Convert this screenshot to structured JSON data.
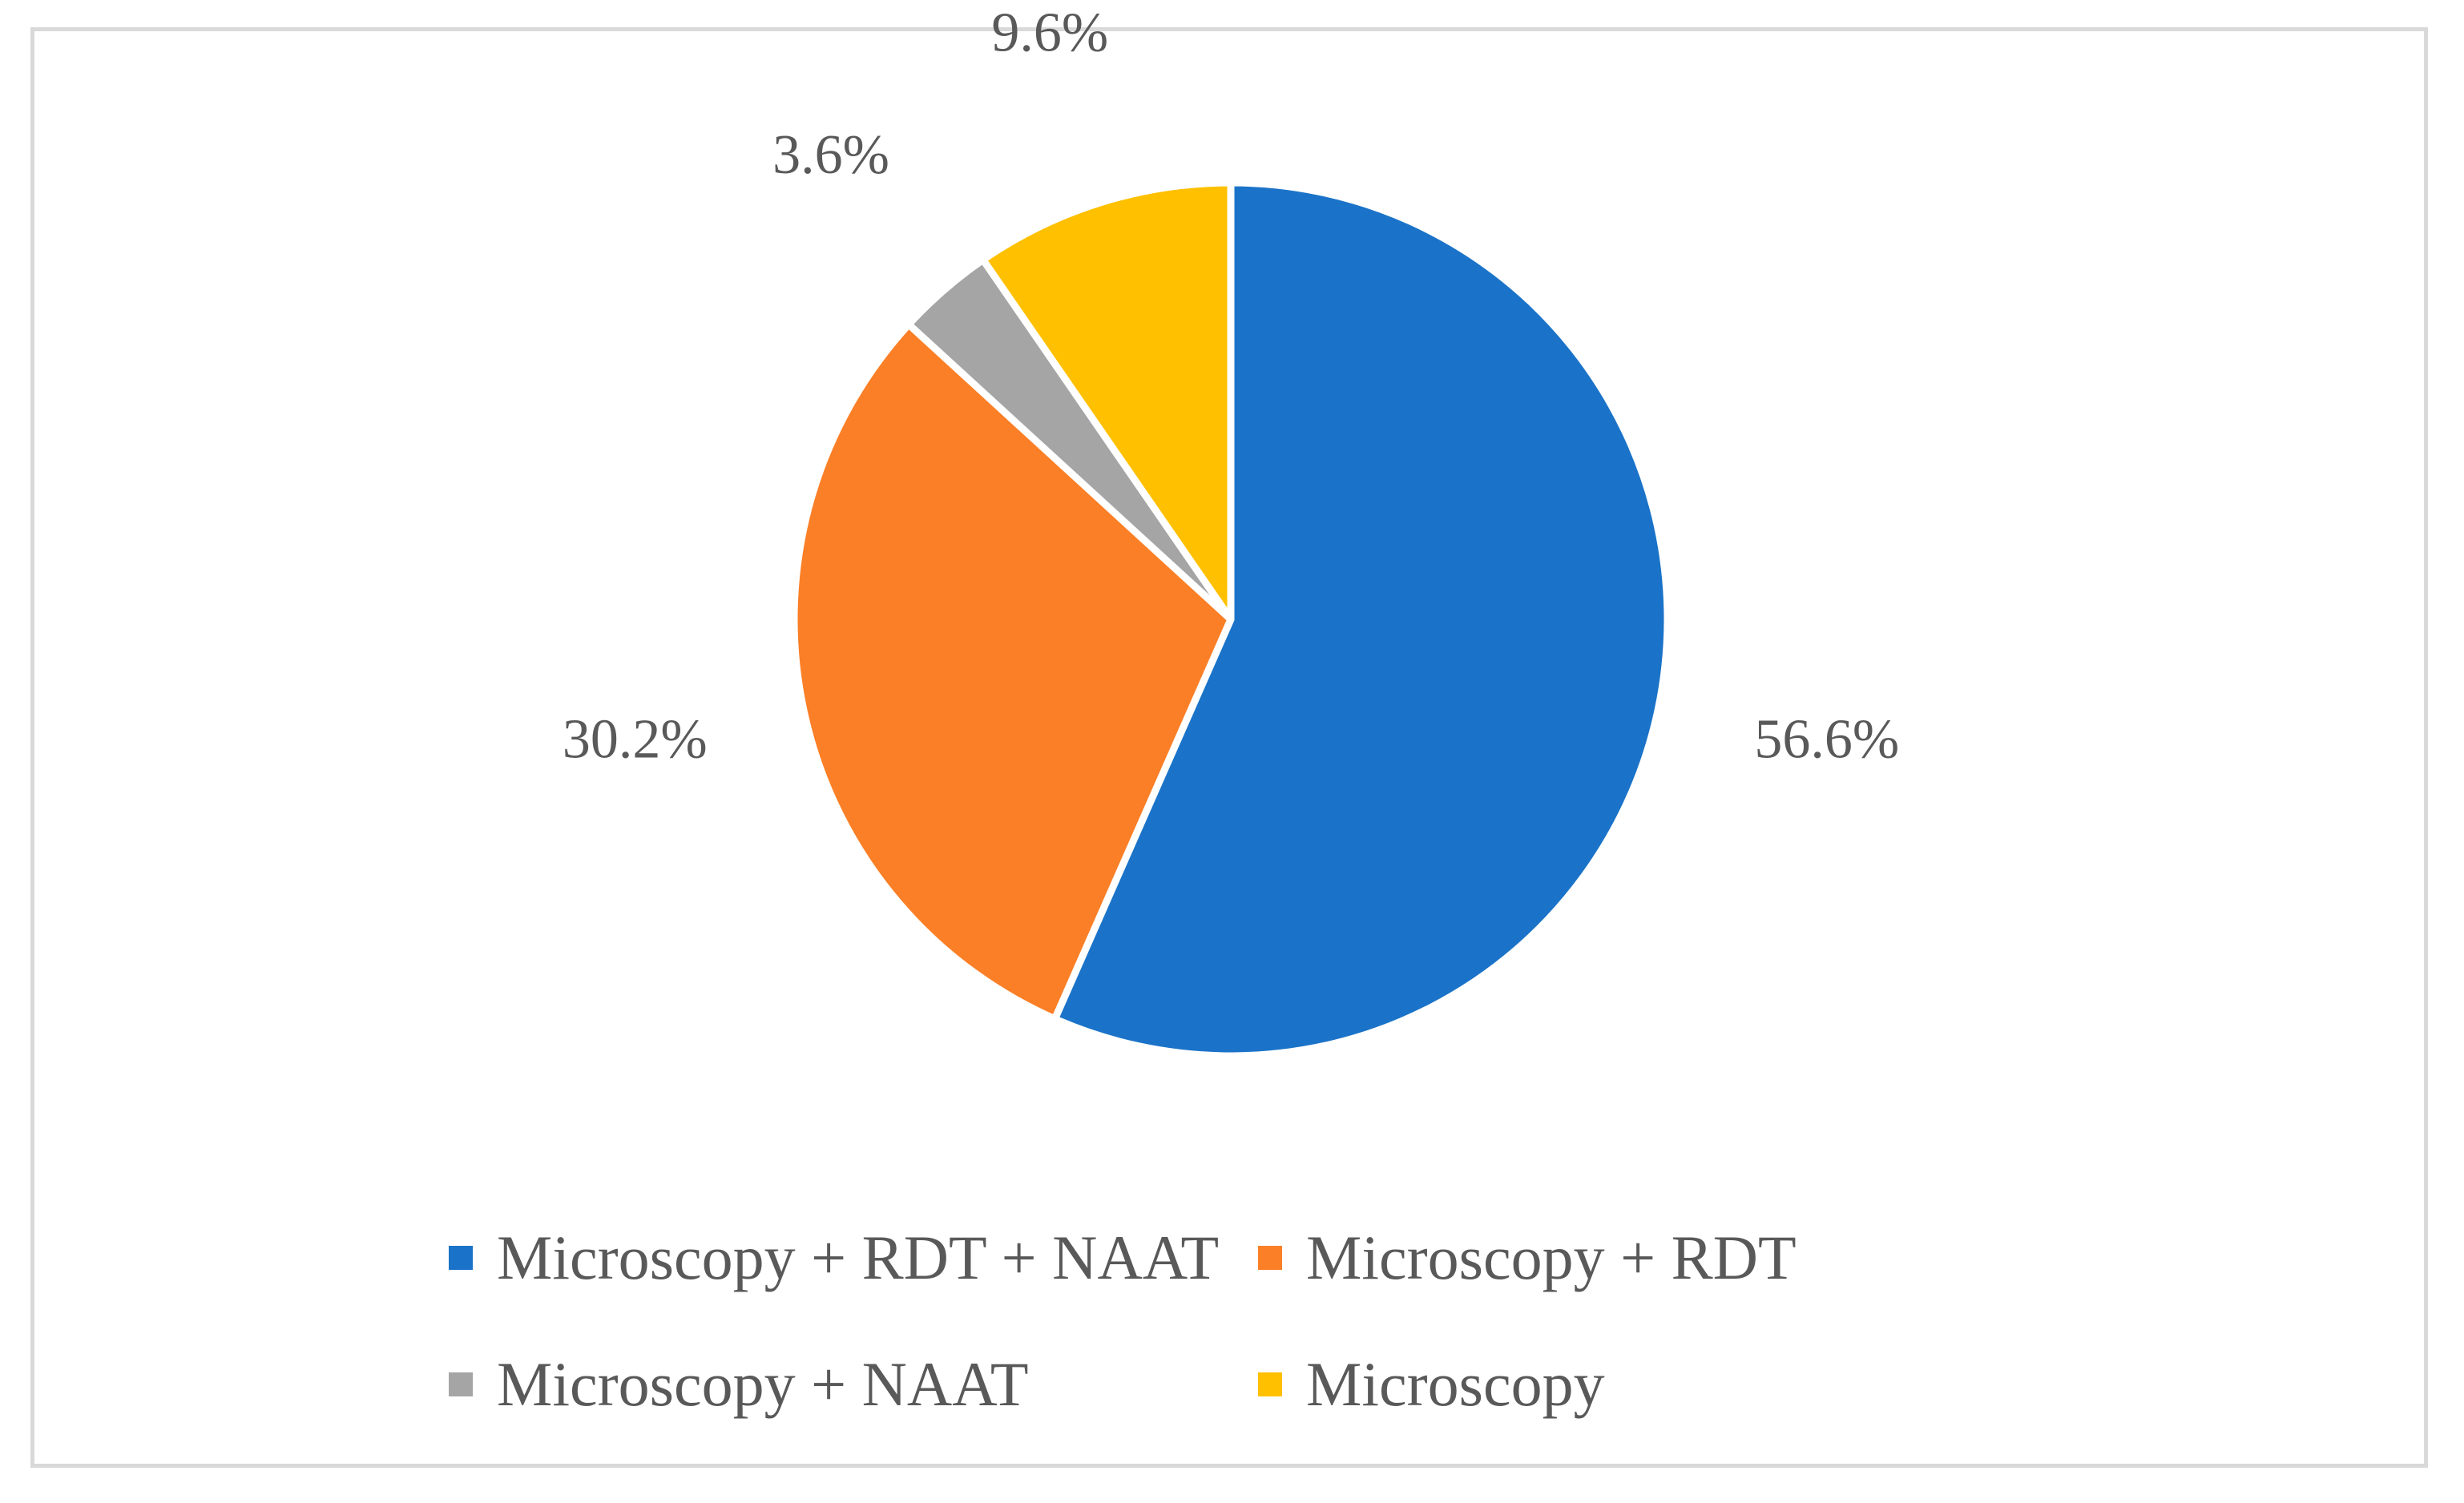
{
  "chart_data": {
    "type": "pie",
    "title": "",
    "slices": [
      {
        "name": "Microscopy + RDT + NAAT",
        "value": 56.6,
        "label": "56.6%",
        "color": "#1a73c8"
      },
      {
        "name": "Microscopy + RDT",
        "value": 30.2,
        "label": "30.2%",
        "color": "#fb7f26"
      },
      {
        "name": "Microscopy + NAAT",
        "value": 3.6,
        "label": "3.6%",
        "color": "#a5a5a5"
      },
      {
        "name": "Microscopy",
        "value": 9.6,
        "label": "9.6%",
        "color": "#ffc000"
      }
    ],
    "start_angle_deg": 0,
    "direction": "clockwise",
    "legend_position": "bottom"
  }
}
